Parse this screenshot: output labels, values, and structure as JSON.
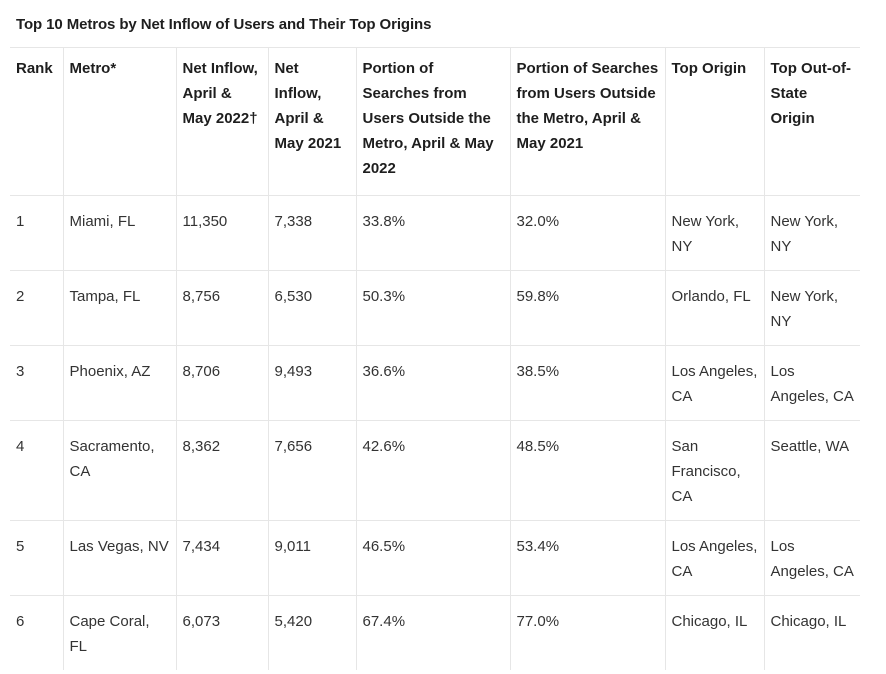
{
  "title": "Top 10 Metros by Net Inflow of Users and Their Top Origins",
  "columns": [
    "Rank",
    "Metro*",
    "Net Inflow, April & May 2022†",
    "Net Inflow, April & May 2021",
    "Portion of Searches from Users Outside the Metro, April & May 2022",
    "Portion of Searches from Users Outside the Metro, April & May 2021",
    "Top Origin",
    "Top Out-of-State Origin"
  ],
  "rows": [
    [
      "1",
      "Miami, FL",
      "11,350",
      "7,338",
      "33.8%",
      "32.0%",
      "New York, NY",
      "New York, NY"
    ],
    [
      "2",
      "Tampa, FL",
      "8,756",
      "6,530",
      "50.3%",
      "59.8%",
      "Orlando, FL",
      "New York, NY"
    ],
    [
      "3",
      "Phoenix, AZ",
      "8,706",
      "9,493",
      "36.6%",
      "38.5%",
      "Los Angeles, CA",
      "Los Angeles, CA"
    ],
    [
      "4",
      "Sacramento, CA",
      "8,362",
      "7,656",
      "42.6%",
      "48.5%",
      "San Francisco, CA",
      "Seattle, WA"
    ],
    [
      "5",
      "Las Vegas, NV",
      "7,434",
      "9,011",
      "46.5%",
      "53.4%",
      "Los Angeles, CA",
      "Los Angeles, CA"
    ],
    [
      "6",
      "Cape Coral, FL",
      "6,073",
      "5,420",
      "67.4%",
      "77.0%",
      "Chicago, IL",
      "Chicago, IL"
    ]
  ]
}
